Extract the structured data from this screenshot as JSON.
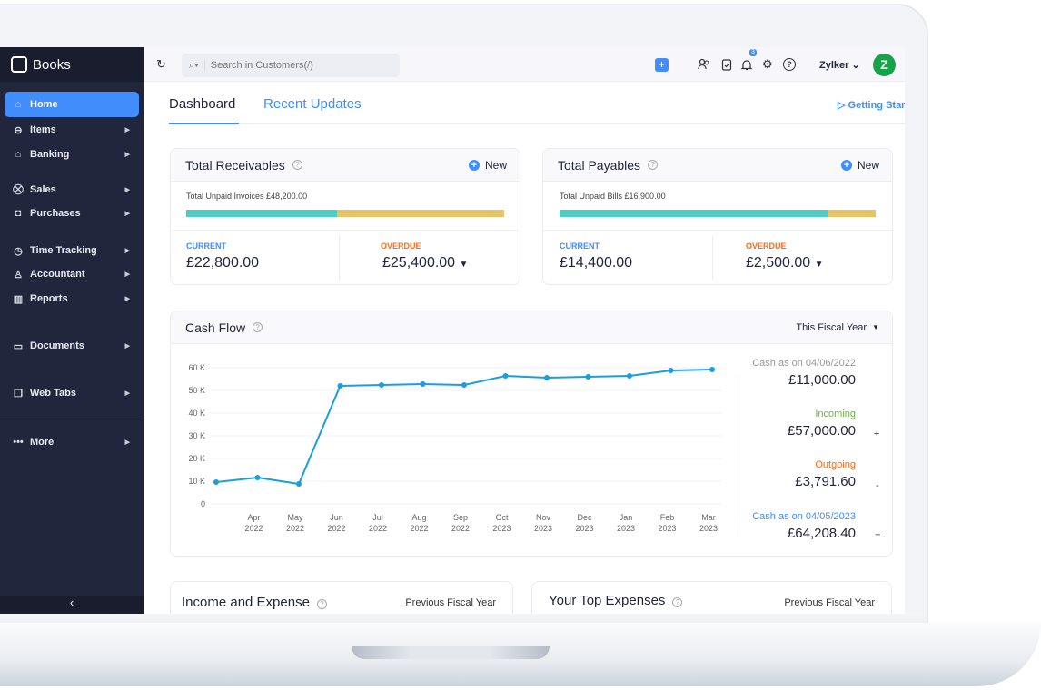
{
  "app": {
    "name": "Books"
  },
  "sidebar": {
    "items": [
      {
        "label": "Home",
        "icon": "home-icon"
      },
      {
        "label": "Items",
        "icon": "basket-icon"
      },
      {
        "label": "Banking",
        "icon": "bank-icon"
      },
      {
        "label": "Sales",
        "icon": "cart-icon"
      },
      {
        "label": "Purchases",
        "icon": "bag-icon"
      },
      {
        "label": "Time Tracking",
        "icon": "timer-icon"
      },
      {
        "label": "Accountant",
        "icon": "accountant-icon"
      },
      {
        "label": "Reports",
        "icon": "reports-icon"
      },
      {
        "label": "Documents",
        "icon": "folder-icon"
      },
      {
        "label": "Web Tabs",
        "icon": "web-tabs-icon"
      },
      {
        "label": "More",
        "icon": "more-icon"
      }
    ],
    "collapse": "‹"
  },
  "topbar": {
    "search_placeholder": "Search in Customers(/)",
    "org": "Zylker",
    "avatar": "Z",
    "notifications": "3",
    "accent": "#408dfb"
  },
  "tabs": [
    {
      "label": "Dashboard",
      "active": true
    },
    {
      "label": "Recent Updates"
    }
  ],
  "getting_started": "Getting Started",
  "receivables": {
    "title": "Total Receivables",
    "new": "New",
    "unpaid": "Total Unpaid Invoices £48,200.00",
    "current_label": "CURRENT",
    "current": "£22,800.00",
    "overdue_label": "OVERDUE",
    "overdue": "£25,400.00",
    "current_fraction": 0.473
  },
  "payables": {
    "title": "Total Payables",
    "new": "New",
    "unpaid": "Total Unpaid Bills £16,900.00",
    "current_label": "CURRENT",
    "current": "£14,400.00",
    "overdue_label": "OVERDUE",
    "overdue": "£2,500.00",
    "current_fraction": 0.852
  },
  "colors": {
    "current": "#4ecdc4",
    "overdue": "#e8c468",
    "line": "#1a9ee0",
    "incoming": "#6db33f",
    "outgoing": "#ff6b1a",
    "blue": "#408dfb"
  },
  "cashflow": {
    "title": "Cash Flow",
    "period": "This Fiscal Year",
    "opening_label": "Cash as on 04/06/2022",
    "opening": "£11,000.00",
    "incoming_label": "Incoming",
    "incoming": "£57,000.00",
    "incoming_op": "+",
    "outgoing_label": "Outgoing",
    "outgoing": "£3,791.60",
    "outgoing_op": "-",
    "closing_label": "Cash as on 04/05/2023",
    "closing": "£64,208.40",
    "closing_op": "="
  },
  "chart_data": {
    "type": "line",
    "ylim": [
      0,
      60000
    ],
    "grid": true,
    "yticks": [
      "0",
      "10 K",
      "20 K",
      "30 K",
      "40 K",
      "50 K",
      "60 K"
    ],
    "categories": [
      [
        "",
        ""
      ],
      [
        "Apr",
        "2022"
      ],
      [
        "May",
        "2022"
      ],
      [
        "Jun",
        "2022"
      ],
      [
        "Jul",
        "2022"
      ],
      [
        "Aug",
        "2022"
      ],
      [
        "Sep",
        "2022"
      ],
      [
        "Oct",
        "2023"
      ],
      [
        "Nov",
        "2023"
      ],
      [
        "Dec",
        "2023"
      ],
      [
        "Jan",
        "2023"
      ],
      [
        "Feb",
        "2023"
      ],
      [
        "Mar",
        "2023"
      ]
    ],
    "values": [
      9600,
      11600,
      8800,
      52000,
      52400,
      52800,
      52400,
      56400,
      55600,
      56000,
      56400,
      58800,
      59200
    ]
  },
  "income_expense": {
    "title": "Income and Expense",
    "period": "Previous Fiscal Year"
  },
  "top_expenses": {
    "title": "Your Top Expenses",
    "period": "Previous Fiscal Year"
  }
}
